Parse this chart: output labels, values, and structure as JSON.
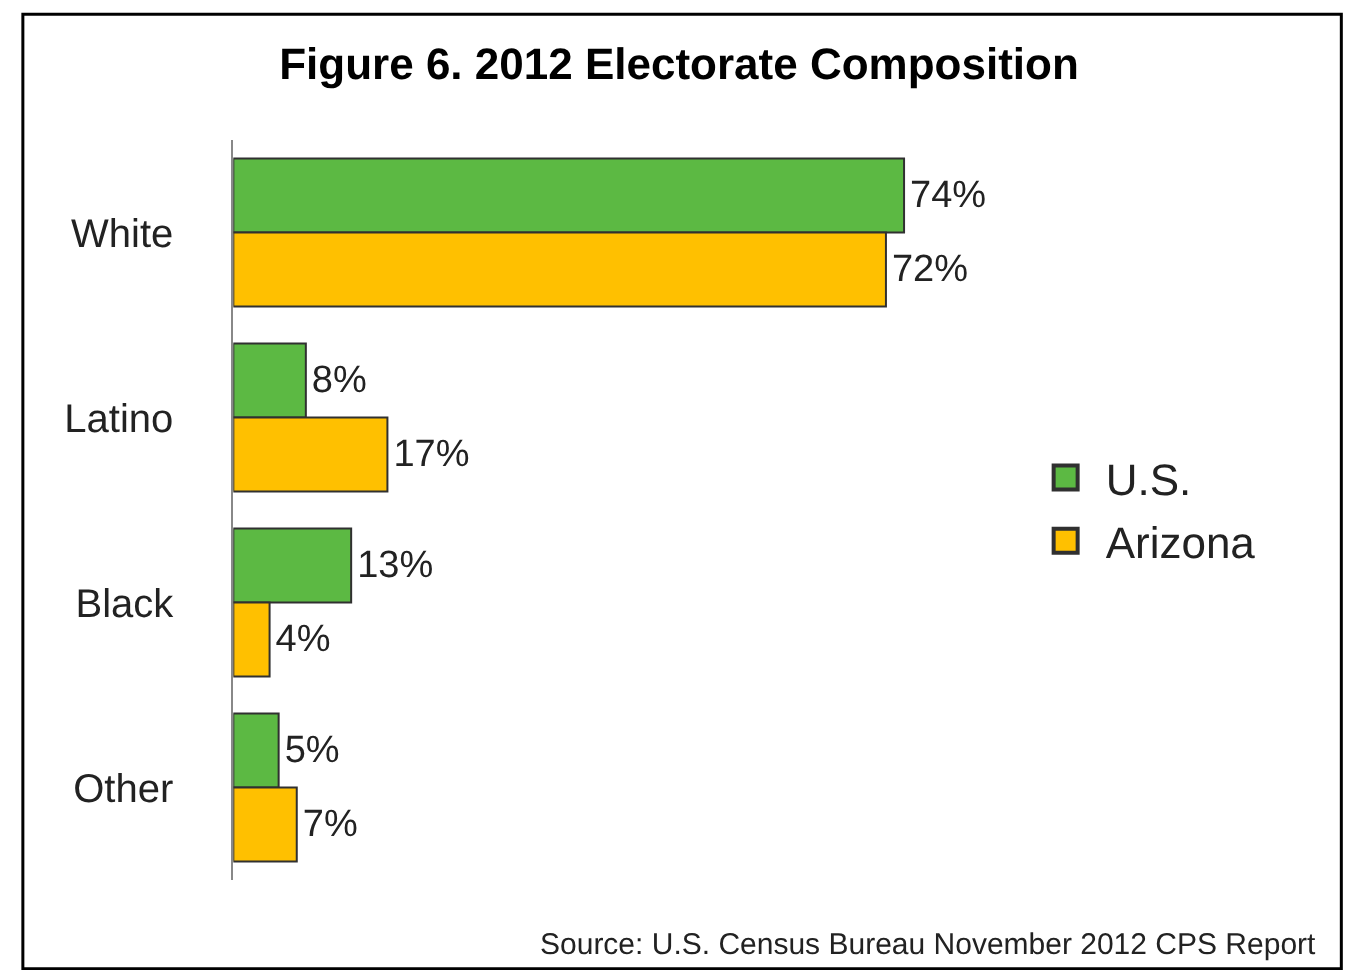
{
  "chart_data": {
    "type": "bar",
    "orientation": "horizontal",
    "title": "Figure 6. 2012 Electorate Composition",
    "categories": [
      "White",
      "Latino",
      "Black",
      "Other"
    ],
    "series": [
      {
        "name": "U.S.",
        "color": "#5cb943",
        "values": [
          74,
          8,
          13,
          5
        ],
        "value_labels": [
          "74%",
          "8%",
          "13%",
          "5%"
        ]
      },
      {
        "name": "Arizona",
        "color": "#ffc000",
        "values": [
          72,
          17,
          4,
          7
        ],
        "value_labels": [
          "72%",
          "17%",
          "4%",
          "7%"
        ]
      }
    ],
    "legend": "right",
    "tick_labels": "y",
    "annotations": [
      "Source: U.S. Census Bureau November 2012 CPS Report"
    ]
  }
}
